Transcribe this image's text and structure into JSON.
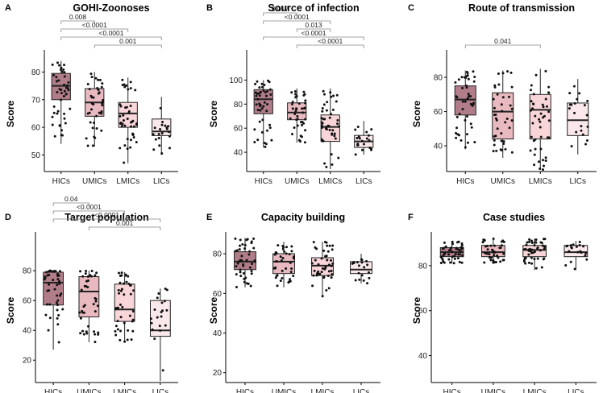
{
  "chart_data": [
    {
      "type": "box",
      "panel_letter": "A",
      "title": "GOHI-Zoonoses",
      "ylabel": "Score",
      "xlabel": "",
      "ylim": [
        44,
        88
      ],
      "yticks": [
        50,
        60,
        70,
        80
      ],
      "categories": [
        "HICs",
        "UMICs",
        "LMICs",
        "LICs"
      ],
      "colors": [
        "#b07d88",
        "#e8b9bf",
        "#f8d5d8",
        "#fbe8ea"
      ],
      "boxes": [
        {
          "min": 54,
          "q1": 70,
          "median": 75,
          "q3": 79.5,
          "max": 84
        },
        {
          "min": 53,
          "q1": 64,
          "median": 69,
          "q3": 74,
          "max": 80
        },
        {
          "min": 47,
          "q1": 60,
          "median": 65,
          "q3": 69,
          "max": 78
        },
        {
          "min": 50,
          "q1": 57,
          "median": 58.5,
          "q3": 63,
          "max": 71
        }
      ],
      "points_per_group": [
        45,
        40,
        45,
        20
      ],
      "comparisons": [
        {
          "from": 0,
          "to": 1,
          "label": "0.008"
        },
        {
          "from": 0,
          "to": 2,
          "label": "<0.0001"
        },
        {
          "from": 0,
          "to": 3,
          "label": "<0.0001"
        },
        {
          "from": 1,
          "to": 3,
          "label": "0.001"
        }
      ]
    },
    {
      "type": "box",
      "panel_letter": "B",
      "title": "Source of infection",
      "ylabel": "Score",
      "xlabel": "",
      "ylim": [
        24,
        125
      ],
      "yticks": [
        40,
        60,
        80,
        100
      ],
      "categories": [
        "HICs",
        "UMICs",
        "LMICs",
        "LICs"
      ],
      "colors": [
        "#b07d88",
        "#e8b9bf",
        "#f8d5d8",
        "#fbe8ea"
      ],
      "boxes": [
        {
          "min": 44,
          "q1": 72,
          "median": 84,
          "q3": 92,
          "max": 100
        },
        {
          "min": 48,
          "q1": 67,
          "median": 73,
          "q3": 81,
          "max": 93
        },
        {
          "min": 26,
          "q1": 49,
          "median": 61,
          "q3": 71,
          "max": 93
        },
        {
          "min": 38,
          "q1": 44,
          "median": 49,
          "q3": 54,
          "max": 66
        }
      ],
      "points_per_group": [
        45,
        40,
        45,
        20
      ],
      "comparisons": [
        {
          "from": 0,
          "to": 1,
          "label": "0.017"
        },
        {
          "from": 0,
          "to": 2,
          "label": "<0.0001"
        },
        {
          "from": 1,
          "to": 2,
          "label": "0.013"
        },
        {
          "from": 0,
          "to": 3,
          "label": "<0.0001"
        },
        {
          "from": 1,
          "to": 3,
          "label": "<0.0001"
        }
      ]
    },
    {
      "type": "box",
      "panel_letter": "C",
      "title": "Route of transmission",
      "ylabel": "Score",
      "xlabel": "",
      "ylim": [
        25,
        96
      ],
      "yticks": [
        40,
        60,
        80
      ],
      "categories": [
        "HICs",
        "UMICs",
        "LMICs",
        "LICs"
      ],
      "colors": [
        "#b07d88",
        "#e8b9bf",
        "#f8d5d8",
        "#fbe8ea"
      ],
      "boxes": [
        {
          "min": 38,
          "q1": 58,
          "median": 67,
          "q3": 75,
          "max": 84
        },
        {
          "min": 33,
          "q1": 44,
          "median": 60,
          "q3": 71,
          "max": 84
        },
        {
          "min": 26,
          "q1": 44,
          "median": 61,
          "q3": 70,
          "max": 85
        },
        {
          "min": 35,
          "q1": 46,
          "median": 55,
          "q3": 65,
          "max": 79
        }
      ],
      "points_per_group": [
        45,
        40,
        45,
        20
      ],
      "comparisons": [
        {
          "from": 0,
          "to": 2,
          "label": "0.041"
        }
      ]
    },
    {
      "type": "box",
      "panel_letter": "D",
      "title": "Target population",
      "ylabel": "Score",
      "xlabel": "",
      "ylim": [
        5,
        106
      ],
      "yticks": [
        20,
        40,
        60,
        80
      ],
      "categories": [
        "HICs",
        "UMICs",
        "LMICs",
        "LICs"
      ],
      "colors": [
        "#b07d88",
        "#e8b9bf",
        "#f8d5d8",
        "#fbe8ea"
      ],
      "boxes": [
        {
          "min": 27,
          "q1": 57,
          "median": 72,
          "q3": 79,
          "max": 80
        },
        {
          "min": 32,
          "q1": 49,
          "median": 66,
          "q3": 76,
          "max": 80
        },
        {
          "min": 32,
          "q1": 46,
          "median": 54,
          "q3": 71,
          "max": 79
        },
        {
          "min": 6,
          "q1": 36,
          "median": 40,
          "q3": 60,
          "max": 68
        }
      ],
      "points_per_group": [
        45,
        40,
        45,
        20
      ],
      "comparisons": [
        {
          "from": 0,
          "to": 1,
          "label": "0.04"
        },
        {
          "from": 0,
          "to": 2,
          "label": "<0.0001"
        },
        {
          "from": 0,
          "to": 3,
          "label": "<0.0001"
        },
        {
          "from": 1,
          "to": 3,
          "label": "0.001"
        }
      ]
    },
    {
      "type": "box",
      "panel_letter": "E",
      "title": "Capacity building",
      "ylabel": "Score",
      "xlabel": "",
      "ylim": [
        15,
        91
      ],
      "yticks": [
        20,
        40,
        60,
        80
      ],
      "categories": [
        "HICs",
        "UMICs",
        "LMICs",
        "LICs"
      ],
      "colors": [
        "#b07d88",
        "#e8b9bf",
        "#f8d5d8",
        "#fbe8ea"
      ],
      "boxes": [
        {
          "min": 63,
          "q1": 72,
          "median": 76,
          "q3": 81,
          "max": 88
        },
        {
          "min": 63,
          "q1": 70,
          "median": 76,
          "q3": 80,
          "max": 86
        },
        {
          "min": 58,
          "q1": 69,
          "median": 74,
          "q3": 78,
          "max": 86
        },
        {
          "min": 65,
          "q1": 70,
          "median": 72,
          "q3": 76,
          "max": 80
        }
      ],
      "points_per_group": [
        45,
        40,
        45,
        20
      ],
      "comparisons": []
    },
    {
      "type": "box",
      "panel_letter": "F",
      "title": "Case studies",
      "ylabel": "Score",
      "xlabel": "",
      "ylim": [
        28,
        95
      ],
      "yticks": [
        40,
        60,
        80
      ],
      "categories": [
        "HICs",
        "UMICs",
        "LMICs",
        "LICs"
      ],
      "colors": [
        "#b07d88",
        "#e8b9bf",
        "#f8d5d8",
        "#fbe8ea"
      ],
      "boxes": [
        {
          "min": 81,
          "q1": 84,
          "median": 86,
          "q3": 88,
          "max": 91
        },
        {
          "min": 81,
          "q1": 84,
          "median": 86,
          "q3": 89,
          "max": 92
        },
        {
          "min": 78,
          "q1": 84,
          "median": 87,
          "q3": 89,
          "max": 92
        },
        {
          "min": 78,
          "q1": 84,
          "median": 86,
          "q3": 89,
          "max": 91
        }
      ],
      "points_per_group": [
        45,
        40,
        45,
        20
      ],
      "comparisons": []
    }
  ]
}
